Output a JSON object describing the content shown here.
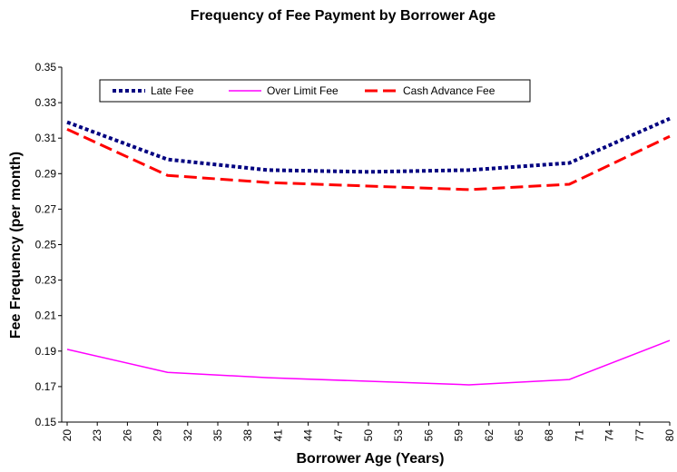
{
  "chart_data": {
    "type": "line",
    "title": "Frequency of Fee Payment by Borrower Age",
    "x_label": "Borrower Age (Years)",
    "y_label": "Fee Frequency (per month)",
    "x": [
      20,
      30,
      40,
      50,
      60,
      70,
      80
    ],
    "series": [
      {
        "name": "Late Fee",
        "color": "#000080",
        "style": "dotted",
        "values": [
          0.319,
          0.298,
          0.292,
          0.291,
          0.292,
          0.296,
          0.321
        ]
      },
      {
        "name": "Over Limit Fee",
        "color": "#ff00ff",
        "style": "solid",
        "values": [
          0.191,
          0.178,
          0.175,
          0.173,
          0.171,
          0.174,
          0.196
        ]
      },
      {
        "name": "Cash Advance Fee",
        "color": "#ff0000",
        "style": "dashed",
        "values": [
          0.315,
          0.289,
          0.285,
          0.283,
          0.281,
          0.284,
          0.311
        ]
      }
    ],
    "xlim": [
      20,
      80
    ],
    "xticks": [
      20,
      23,
      26,
      29,
      32,
      35,
      38,
      41,
      44,
      47,
      50,
      53,
      56,
      59,
      62,
      65,
      68,
      71,
      74,
      77,
      80
    ],
    "ylim": [
      0.15,
      0.35
    ],
    "yticks": [
      0.15,
      0.17,
      0.19,
      0.21,
      0.23,
      0.25,
      0.27,
      0.29,
      0.31,
      0.33,
      0.35
    ],
    "grid": false,
    "legend": "top"
  }
}
